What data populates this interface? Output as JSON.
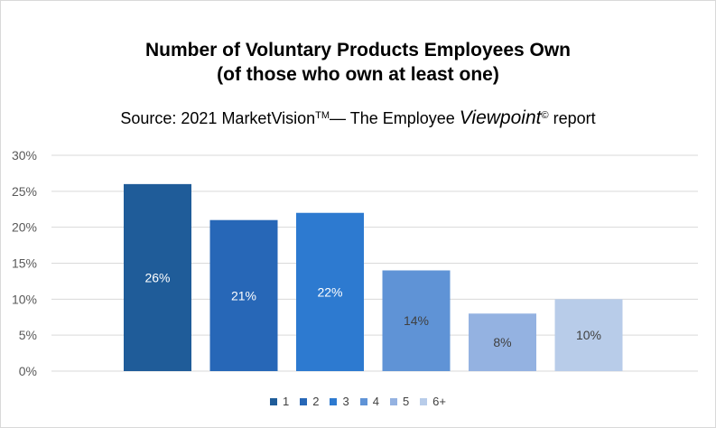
{
  "title": {
    "line1": "Number of Voluntary Products Employees Own",
    "line2": "(of those who own at least one)"
  },
  "source": {
    "prefix": "Source: 2021 MarketVision",
    "tm": "TM",
    "mid": "— The Employee ",
    "viewpoint": "Viewpoint",
    "copyright": "©",
    "suffix": " report"
  },
  "chart_data": {
    "type": "bar",
    "categories": [
      "1",
      "2",
      "3",
      "4",
      "5",
      "6+"
    ],
    "values": [
      26,
      21,
      22,
      14,
      8,
      10
    ],
    "data_labels": [
      "26%",
      "21%",
      "22%",
      "14%",
      "8%",
      "10%"
    ],
    "colors": [
      "#1f5c99",
      "#2767b7",
      "#2d7ad0",
      "#5f93d6",
      "#94b2e1",
      "#b8cce9"
    ],
    "label_colors": [
      "#ffffff",
      "#ffffff",
      "#ffffff",
      "#404040",
      "#404040",
      "#404040"
    ],
    "ylim": [
      0,
      30
    ],
    "yticks": [
      0,
      5,
      10,
      15,
      20,
      25,
      30
    ],
    "ytick_labels": [
      "0%",
      "5%",
      "10%",
      "15%",
      "20%",
      "25%",
      "30%"
    ],
    "grid": true,
    "legend": "bottom",
    "gridline_color": "#d9d9d9"
  }
}
